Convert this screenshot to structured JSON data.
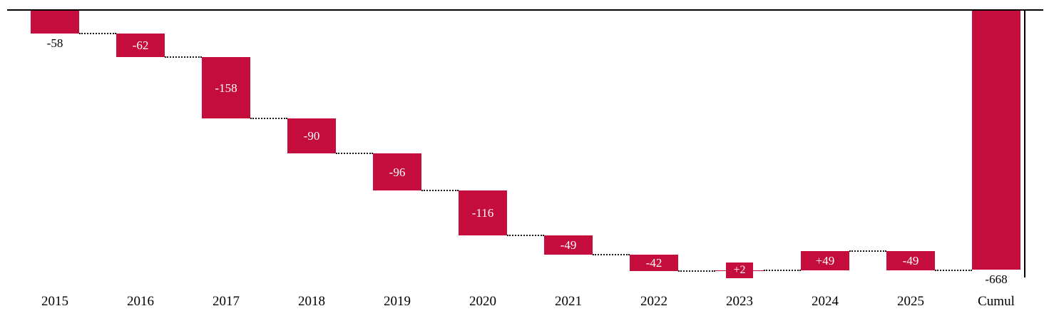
{
  "chart_data": {
    "type": "waterfall",
    "categories": [
      "2015",
      "2016",
      "2017",
      "2018",
      "2019",
      "2020",
      "2021",
      "2022",
      "2023",
      "2024",
      "2025",
      "Cumul"
    ],
    "values": [
      -58,
      -62,
      -158,
      -90,
      -96,
      -116,
      -49,
      -42,
      2,
      49,
      -49,
      -668
    ],
    "labels": [
      "-58",
      "-62",
      "-158",
      "-90",
      "-96",
      "-116",
      "-49",
      "-42",
      "+2",
      "+49",
      "-49",
      "-668"
    ],
    "total_index": 11,
    "title": "",
    "xlabel": "",
    "ylabel": "",
    "ylim": [
      -700,
      0
    ],
    "grid": false,
    "legend": false,
    "zero_baseline": true,
    "right_axis_line": true,
    "connector_style": "dotted",
    "bar_color": "#c50d3d",
    "label_color_inside": "#ffffff",
    "label_color_outside": "#000000",
    "axis_line_color": "#000000"
  }
}
